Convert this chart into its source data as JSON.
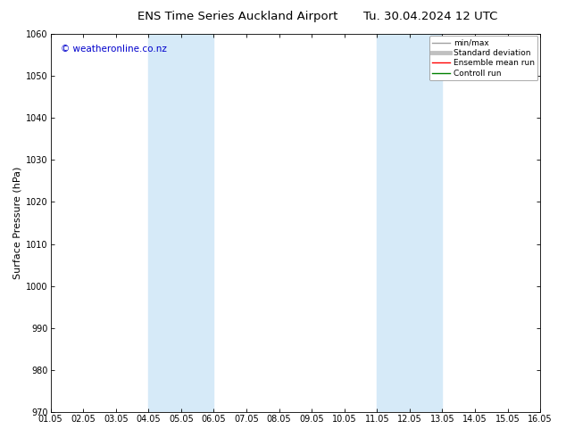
{
  "title_left": "ENS Time Series Auckland Airport",
  "title_right": "Tu. 30.04.2024 12 UTC",
  "ylabel": "Surface Pressure (hPa)",
  "ylim": [
    970,
    1060
  ],
  "yticks": [
    970,
    980,
    990,
    1000,
    1010,
    1020,
    1030,
    1040,
    1050,
    1060
  ],
  "xtick_labels": [
    "01.05",
    "02.05",
    "03.05",
    "04.05",
    "05.05",
    "06.05",
    "07.05",
    "08.05",
    "09.05",
    "10.05",
    "11.05",
    "12.05",
    "13.05",
    "14.05",
    "15.05",
    "16.05"
  ],
  "xlim": [
    0,
    15
  ],
  "shaded_bands": [
    {
      "xmin": 3.0,
      "xmax": 5.0,
      "color": "#d6eaf8"
    },
    {
      "xmin": 10.0,
      "xmax": 12.0,
      "color": "#d6eaf8"
    }
  ],
  "legend_items": [
    {
      "label": "min/max",
      "color": "#a0a0a0",
      "lw": 1.0
    },
    {
      "label": "Standard deviation",
      "color": "#c0c0c0",
      "lw": 3.5
    },
    {
      "label": "Ensemble mean run",
      "color": "#ff0000",
      "lw": 1.0
    },
    {
      "label": "Controll run",
      "color": "#008000",
      "lw": 1.0
    }
  ],
  "watermark_text": "© weatheronline.co.nz",
  "watermark_color": "#0000cc",
  "background_color": "#ffffff",
  "title_fontsize": 9.5,
  "ylabel_fontsize": 8,
  "tick_fontsize": 7,
  "watermark_fontsize": 7.5,
  "legend_fontsize": 6.5
}
